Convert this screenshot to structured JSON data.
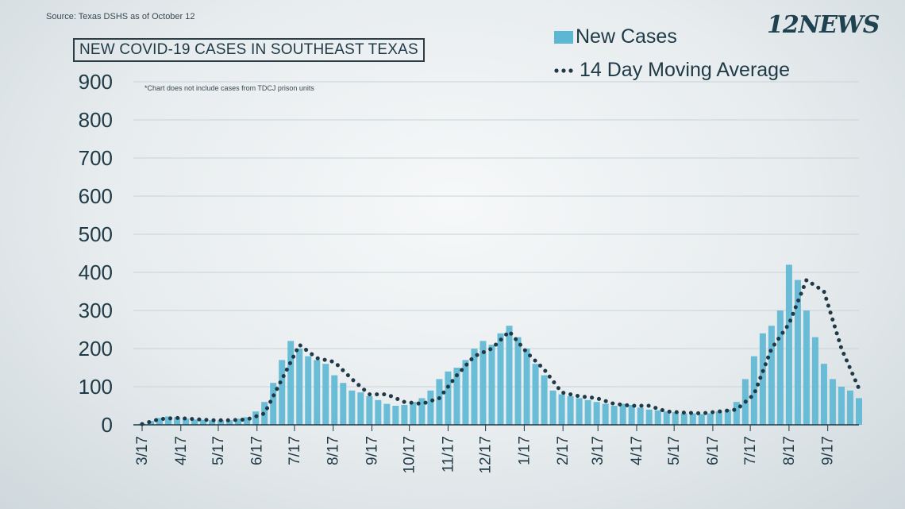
{
  "source": "Source: Texas DSHS as of October 12",
  "title": "NEW COVID-19 CASES IN SOUTHEAST TEXAS",
  "note": "*Chart does not include cases from TDCJ prison units",
  "logo": "12NEWS",
  "legend": {
    "bars_label": "New Cases",
    "line_label": "14 Day Moving Average"
  },
  "colors": {
    "bars": "#5cb7d3",
    "line": "#1f3a46",
    "text": "#1f3a46"
  },
  "chart_data": {
    "type": "bar",
    "title": "NEW COVID-19 CASES IN SOUTHEAST TEXAS",
    "xlabel": "",
    "ylabel": "",
    "ylim": [
      0,
      900
    ],
    "yticks": [
      0,
      100,
      200,
      300,
      400,
      500,
      600,
      700,
      800,
      900
    ],
    "grid": true,
    "x_range": [
      "2020-03-10",
      "2021-10-12"
    ],
    "xtick_labels": [
      "3/17",
      "4/17",
      "5/17",
      "6/17",
      "7/17",
      "8/17",
      "9/17",
      "10/17",
      "11/17",
      "12/17",
      "1/17",
      "2/17",
      "3/17",
      "4/17",
      "5/17",
      "6/17",
      "7/17",
      "8/17",
      "9/17"
    ],
    "xtick_dates": [
      "2020-03-17",
      "2020-04-17",
      "2020-05-17",
      "2020-06-17",
      "2020-07-17",
      "2020-08-17",
      "2020-09-17",
      "2020-10-17",
      "2020-11-17",
      "2020-12-17",
      "2021-01-17",
      "2021-02-17",
      "2021-03-17",
      "2021-04-17",
      "2021-05-17",
      "2021-06-17",
      "2021-07-17",
      "2021-08-17",
      "2021-09-17"
    ],
    "series": [
      {
        "name": "New Cases",
        "kind": "bar",
        "x": [
          "2020-03-17",
          "2020-03-24",
          "2020-03-31",
          "2020-04-07",
          "2020-04-14",
          "2020-04-21",
          "2020-04-28",
          "2020-05-05",
          "2020-05-12",
          "2020-05-19",
          "2020-05-26",
          "2020-06-02",
          "2020-06-09",
          "2020-06-16",
          "2020-06-23",
          "2020-06-30",
          "2020-07-07",
          "2020-07-14",
          "2020-07-21",
          "2020-07-28",
          "2020-08-04",
          "2020-08-11",
          "2020-08-18",
          "2020-08-25",
          "2020-09-01",
          "2020-09-08",
          "2020-09-15",
          "2020-09-22",
          "2020-09-29",
          "2020-10-06",
          "2020-10-13",
          "2020-10-20",
          "2020-10-27",
          "2020-11-03",
          "2020-11-10",
          "2020-11-17",
          "2020-11-24",
          "2020-12-01",
          "2020-12-08",
          "2020-12-15",
          "2020-12-22",
          "2020-12-29",
          "2021-01-05",
          "2021-01-12",
          "2021-01-19",
          "2021-01-26",
          "2021-02-02",
          "2021-02-09",
          "2021-02-16",
          "2021-02-23",
          "2021-03-02",
          "2021-03-09",
          "2021-03-16",
          "2021-03-23",
          "2021-03-30",
          "2021-04-06",
          "2021-04-13",
          "2021-04-20",
          "2021-04-27",
          "2021-05-04",
          "2021-05-11",
          "2021-05-18",
          "2021-05-25",
          "2021-06-01",
          "2021-06-08",
          "2021-06-15",
          "2021-06-22",
          "2021-06-29",
          "2021-07-06",
          "2021-07-13",
          "2021-07-20",
          "2021-07-27",
          "2021-08-03",
          "2021-08-10",
          "2021-08-17",
          "2021-08-24",
          "2021-08-31",
          "2021-09-07",
          "2021-09-14",
          "2021-09-21",
          "2021-09-28",
          "2021-10-05",
          "2021-10-12"
        ],
        "values": [
          3,
          10,
          18,
          22,
          20,
          16,
          14,
          13,
          12,
          12,
          12,
          16,
          20,
          35,
          60,
          110,
          170,
          220,
          200,
          180,
          170,
          160,
          130,
          110,
          90,
          85,
          75,
          65,
          55,
          50,
          52,
          60,
          70,
          90,
          120,
          140,
          150,
          170,
          200,
          220,
          210,
          240,
          260,
          230,
          200,
          160,
          130,
          90,
          80,
          75,
          70,
          65,
          60,
          55,
          50,
          55,
          52,
          45,
          40,
          38,
          35,
          33,
          30,
          30,
          28,
          30,
          35,
          40,
          60,
          120,
          180,
          240,
          260,
          300,
          420,
          380,
          300,
          230,
          160,
          120,
          100,
          90,
          70
        ]
      },
      {
        "name": "14 Day Moving Average",
        "kind": "line",
        "x": [
          "2020-03-17",
          "2020-03-31",
          "2020-04-14",
          "2020-04-28",
          "2020-05-12",
          "2020-05-26",
          "2020-06-09",
          "2020-06-23",
          "2020-07-07",
          "2020-07-21",
          "2020-08-04",
          "2020-08-18",
          "2020-09-01",
          "2020-09-15",
          "2020-09-29",
          "2020-10-13",
          "2020-10-27",
          "2020-11-10",
          "2020-11-24",
          "2020-12-08",
          "2020-12-22",
          "2021-01-05",
          "2021-01-19",
          "2021-02-02",
          "2021-02-16",
          "2021-03-02",
          "2021-03-16",
          "2021-03-30",
          "2021-04-13",
          "2021-04-27",
          "2021-05-11",
          "2021-05-25",
          "2021-06-08",
          "2021-06-22",
          "2021-07-06",
          "2021-07-20",
          "2021-08-03",
          "2021-08-17",
          "2021-08-31",
          "2021-09-14",
          "2021-09-28",
          "2021-10-12"
        ],
        "values": [
          2,
          15,
          18,
          15,
          12,
          12,
          14,
          30,
          120,
          210,
          175,
          165,
          120,
          80,
          80,
          60,
          55,
          70,
          130,
          180,
          200,
          245,
          190,
          145,
          85,
          75,
          70,
          55,
          50,
          50,
          35,
          32,
          30,
          35,
          40,
          80,
          200,
          265,
          380,
          350,
          200,
          95
        ]
      }
    ]
  }
}
